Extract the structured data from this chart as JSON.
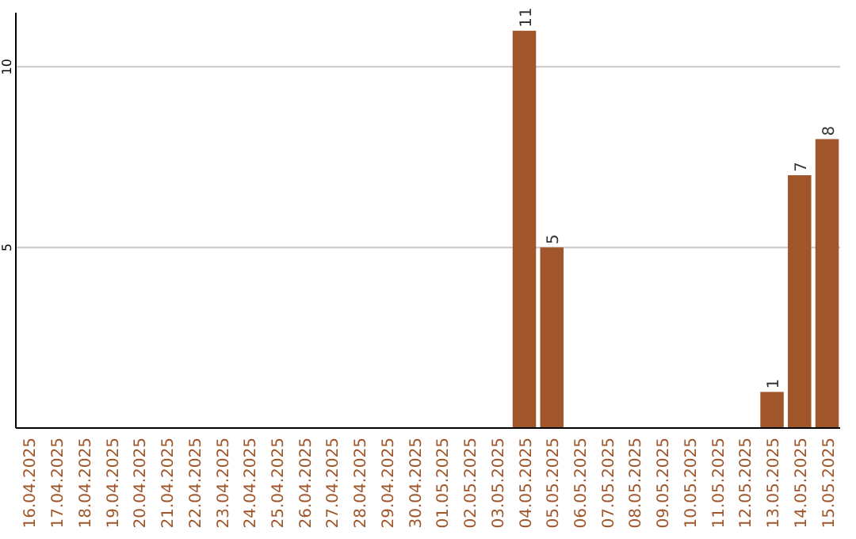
{
  "chart_data": {
    "type": "bar",
    "categories": [
      "16.04.2025",
      "17.04.2025",
      "18.04.2025",
      "19.04.2025",
      "20.04.2025",
      "21.04.2025",
      "22.04.2025",
      "23.04.2025",
      "24.04.2025",
      "25.04.2025",
      "26.04.2025",
      "27.04.2025",
      "28.04.2025",
      "29.04.2025",
      "30.04.2025",
      "01.05.2025",
      "02.05.2025",
      "03.05.2025",
      "04.05.2025",
      "05.05.2025",
      "06.05.2025",
      "07.05.2025",
      "08.05.2025",
      "09.05.2025",
      "10.05.2025",
      "11.05.2025",
      "12.05.2025",
      "13.05.2025",
      "14.05.2025",
      "15.05.2025"
    ],
    "values": [
      0,
      0,
      0,
      0,
      0,
      0,
      0,
      0,
      0,
      0,
      0,
      0,
      0,
      0,
      0,
      0,
      0,
      0,
      11,
      5,
      0,
      0,
      0,
      0,
      0,
      0,
      0,
      1,
      7,
      8
    ],
    "value_labels": [
      null,
      null,
      null,
      null,
      null,
      null,
      null,
      null,
      null,
      null,
      null,
      null,
      null,
      null,
      null,
      null,
      null,
      null,
      "11",
      "5",
      null,
      null,
      null,
      null,
      null,
      null,
      null,
      "1",
      "7",
      "8"
    ],
    "color": "#a0562a",
    "ylim": [
      0,
      11.5
    ],
    "yticks": [
      5,
      10
    ],
    "grid": "y"
  }
}
